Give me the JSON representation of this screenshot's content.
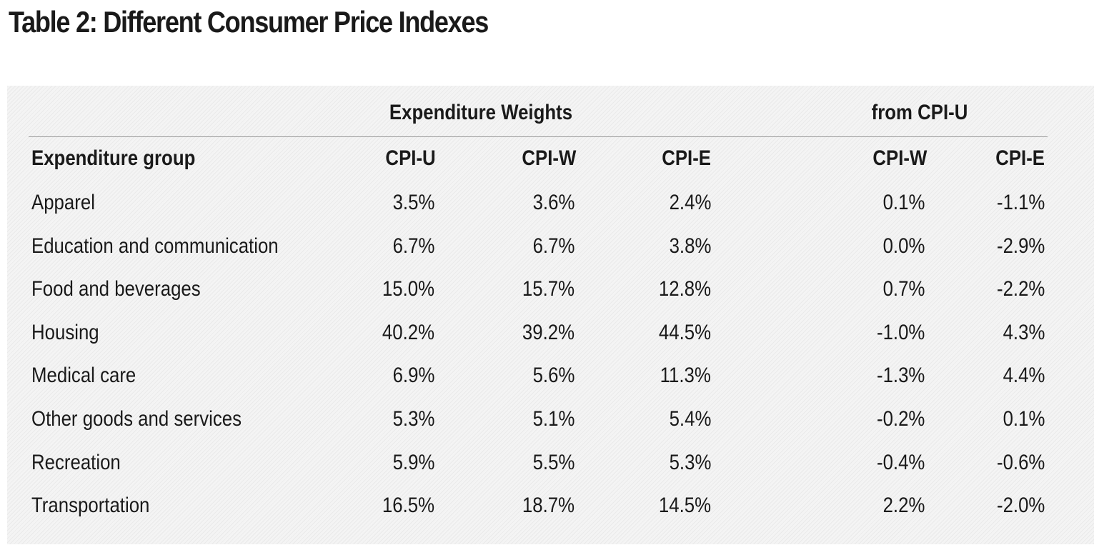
{
  "title": "Table 2: Different Consumer Price Indexes",
  "table": {
    "group_headers": {
      "weights": "Expenditure Weights",
      "diff": "from CPI-U"
    },
    "columns": [
      "Expenditure group",
      "CPI-U",
      "CPI-W",
      "CPI-E",
      "CPI-W",
      "CPI-E"
    ],
    "rows": [
      [
        "Apparel",
        "3.5%",
        "3.6%",
        "2.4%",
        "0.1%",
        "-1.1%"
      ],
      [
        "Education and communication",
        "6.7%",
        "6.7%",
        "3.8%",
        "0.0%",
        "-2.9%"
      ],
      [
        "Food and beverages",
        "15.0%",
        "15.7%",
        "12.8%",
        "0.7%",
        "-2.2%"
      ],
      [
        "Housing",
        "40.2%",
        "39.2%",
        "44.5%",
        "-1.0%",
        "4.3%"
      ],
      [
        "Medical care",
        "6.9%",
        "5.6%",
        "11.3%",
        "-1.3%",
        "4.4%"
      ],
      [
        "Other goods and services",
        "5.3%",
        "5.1%",
        "5.4%",
        "-0.2%",
        "0.1%"
      ],
      [
        "Recreation",
        "5.9%",
        "5.5%",
        "5.3%",
        "-0.4%",
        "-0.6%"
      ],
      [
        "Transportation",
        "16.5%",
        "18.7%",
        "14.5%",
        "2.2%",
        "-2.0%"
      ]
    ]
  }
}
